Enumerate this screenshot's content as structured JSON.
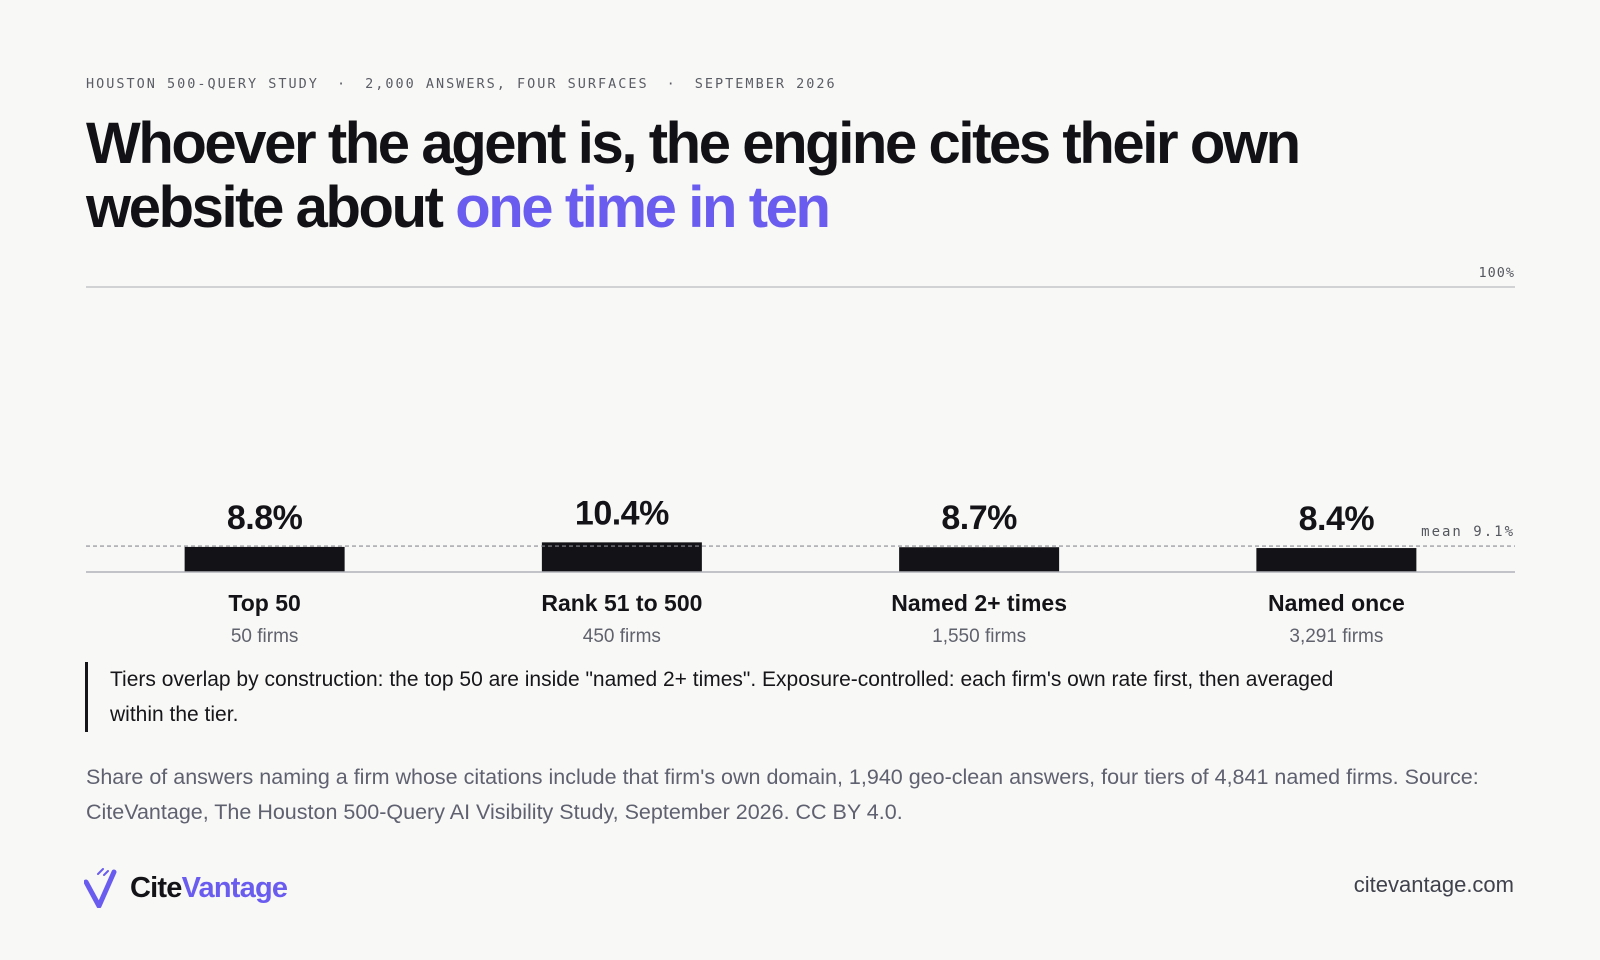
{
  "header": {
    "kicker": [
      "HOUSTON 500-QUERY STUDY",
      "2,000 ANSWERS, FOUR SURFACES",
      "SEPTEMBER 2026"
    ],
    "kicker_separator": "·",
    "headline_main": "Whoever the agent is, the engine cites their own website about ",
    "headline_accent": "one time in ten"
  },
  "chart_data": {
    "type": "bar",
    "categories": [
      "Top 50",
      "Rank 51 to 500",
      "Named 2+ times",
      "Named once"
    ],
    "sublabels": [
      "50 firms",
      "450 firms",
      "1,550 firms",
      "3,291 firms"
    ],
    "values": [
      8.8,
      10.4,
      8.7,
      8.4
    ],
    "value_labels": [
      "8.8%",
      "10.4%",
      "8.7%",
      "8.4%"
    ],
    "ylim": [
      0,
      100
    ],
    "top_label": "100%",
    "reference_line": {
      "value": 9.1,
      "label": "mean 9.1%"
    }
  },
  "note": "Tiers overlap by construction: the top 50 are inside \"named 2+ times\". Exposure-controlled: each firm's own rate first, then averaged within the tier.",
  "source": "Share of answers naming a firm whose citations include that firm's own domain, 1,940 geo-clean answers, four tiers of 4,841 named firms. Source: CiteVantage, The Houston 500-Query AI Visibility Study, September 2026. CC BY 4.0.",
  "footer": {
    "brand_part1": "Cite",
    "brand_part2": "Vantage",
    "site": "citevantage.com"
  },
  "colors": {
    "accent": "#6b5cf0",
    "bar": "#131317",
    "background": "#f8f8f6",
    "muted": "#5f6170"
  }
}
